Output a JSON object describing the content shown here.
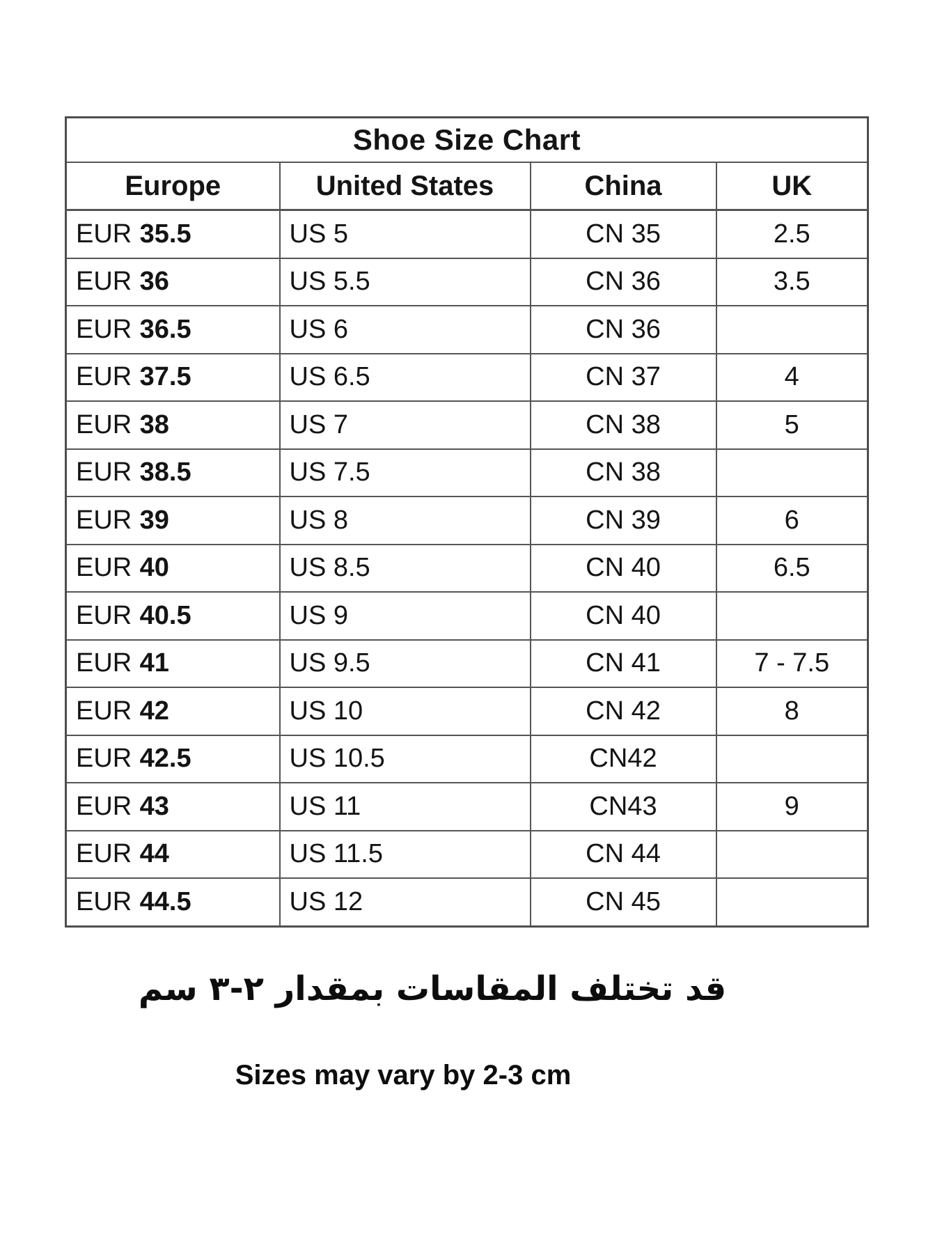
{
  "table": {
    "title": "Shoe Size Chart",
    "columns": [
      "Europe",
      "United States",
      "China",
      "UK"
    ],
    "eur_prefix": "EUR",
    "rows": [
      {
        "eur": "35.5",
        "us": "US 5",
        "cn": "CN 35",
        "uk": "2.5"
      },
      {
        "eur": "36",
        "us": "US 5.5",
        "cn": "CN 36",
        "uk": "3.5"
      },
      {
        "eur": "36.5",
        "us": "US 6",
        "cn": "CN 36",
        "uk": ""
      },
      {
        "eur": "37.5",
        "us": "US 6.5",
        "cn": "CN 37",
        "uk": "4"
      },
      {
        "eur": "38",
        "us": "US 7",
        "cn": "CN 38",
        "uk": "5"
      },
      {
        "eur": "38.5",
        "us": "US 7.5",
        "cn": "CN 38",
        "uk": ""
      },
      {
        "eur": "39",
        "us": "US 8",
        "cn": "CN 39",
        "uk": "6"
      },
      {
        "eur": "40",
        "us": "US 8.5",
        "cn": "CN 40",
        "uk": "6.5"
      },
      {
        "eur": "40.5",
        "us": "US 9",
        "cn": "CN 40",
        "uk": ""
      },
      {
        "eur": "41",
        "us": "US 9.5",
        "cn": "CN 41",
        "uk": "7 - 7.5"
      },
      {
        "eur": "42",
        "us": "US 10",
        "cn": "CN 42",
        "uk": "8"
      },
      {
        "eur": "42.5",
        "us": "US 10.5",
        "cn": "CN42",
        "uk": ""
      },
      {
        "eur": "43",
        "us": "US 11",
        "cn": "CN43",
        "uk": "9"
      },
      {
        "eur": "44",
        "us": "US 11.5",
        "cn": "CN 44",
        "uk": ""
      },
      {
        "eur": "44.5",
        "us": "US 12",
        "cn": "CN 45",
        "uk": ""
      }
    ]
  },
  "captions": {
    "arabic": "قد تختلف المقاسات بمقدار ٢-٣ سم",
    "english": "Sizes may vary by 2-3 cm"
  },
  "colors": {
    "background": "#ffffff",
    "border": "#555555",
    "text": "#141414"
  }
}
